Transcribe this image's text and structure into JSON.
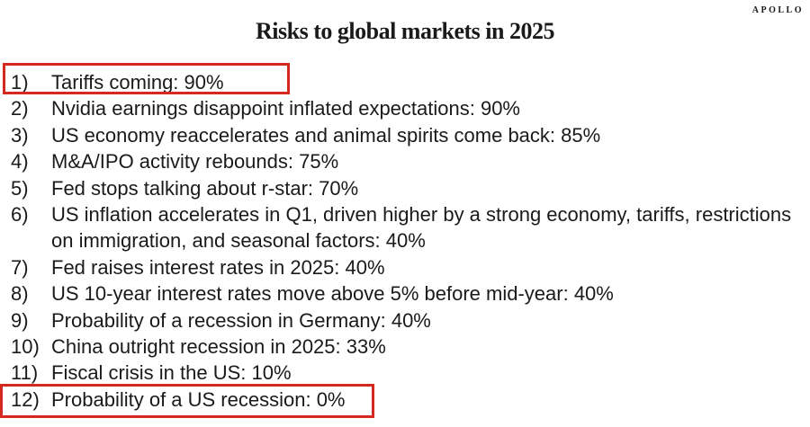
{
  "brand": {
    "logo_text": "APOLLO"
  },
  "title": "Risks to global markets in 2025",
  "list": {
    "items": [
      {
        "number": "1)",
        "text": "Tariffs coming: 90%",
        "highlighted": true
      },
      {
        "number": "2)",
        "text": "Nvidia earnings disappoint inflated expectations: 90%",
        "highlighted": false
      },
      {
        "number": "3)",
        "text": "US economy reaccelerates and animal spirits come back: 85%",
        "highlighted": false
      },
      {
        "number": "4)",
        "text": "M&A/IPO activity rebounds: 75%",
        "highlighted": false
      },
      {
        "number": "5)",
        "text": "Fed stops talking about r-star: 70%",
        "highlighted": false
      },
      {
        "number": "6)",
        "text": "US inflation accelerates in Q1, driven higher by a strong economy, tariffs, restrictions on immigration, and seasonal factors: 40%",
        "highlighted": false
      },
      {
        "number": "7)",
        "text": "Fed raises interest rates in 2025: 40%",
        "highlighted": false
      },
      {
        "number": "8)",
        "text": "US 10-year interest rates move above 5% before mid-year: 40%",
        "highlighted": false
      },
      {
        "number": "9)",
        "text": "Probability of a recession in Germany: 40%",
        "highlighted": false
      },
      {
        "number": "10)",
        "text": "China outright recession in 2025: 33%",
        "highlighted": false
      },
      {
        "number": "11)",
        "text": "Fiscal crisis in the US: 10%",
        "highlighted": false
      },
      {
        "number": "12)",
        "text": "Probability of a US recession: 0%",
        "highlighted": true
      }
    ]
  },
  "colors": {
    "highlight_border": "#d42a1e",
    "text_color": "#1a1a1a"
  }
}
